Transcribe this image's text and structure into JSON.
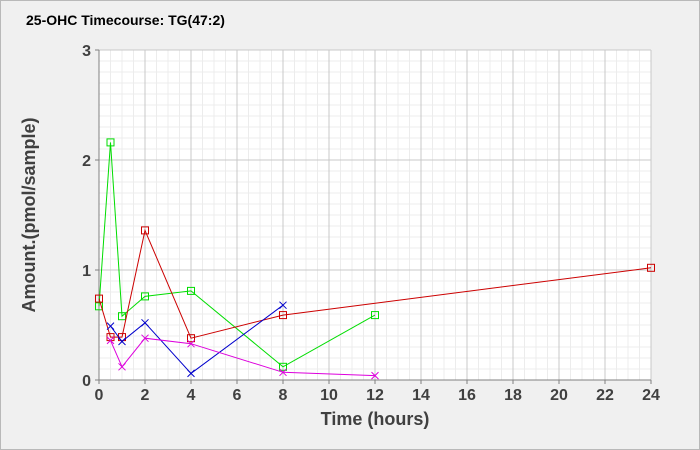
{
  "chart_data": {
    "type": "line",
    "title": "25-OHC Timecourse: TG(47:2)",
    "xlabel": "Time (hours)",
    "ylabel": "Amount.(pmol/sample)",
    "xlim": [
      0,
      24
    ],
    "ylim": [
      0,
      3
    ],
    "x_ticks": [
      "0",
      "2",
      "4",
      "6",
      "8",
      "10",
      "12",
      "14",
      "16",
      "18",
      "20",
      "22",
      "24"
    ],
    "y_ticks": [
      "0",
      "1",
      "2",
      "3"
    ],
    "grid": true,
    "legend": "none",
    "series": [
      {
        "color": "#00dd00",
        "marker": "square",
        "points": [
          [
            0,
            0.67
          ],
          [
            0.5,
            2.16
          ],
          [
            1,
            0.58
          ],
          [
            2,
            0.76
          ],
          [
            4,
            0.81
          ],
          [
            8,
            0.12
          ],
          [
            12,
            0.59
          ]
        ]
      },
      {
        "color": "#cc0000",
        "marker": "square",
        "points": [
          [
            0,
            0.74
          ],
          [
            0.5,
            0.39
          ],
          [
            1,
            0.39
          ],
          [
            2,
            1.36
          ],
          [
            4,
            0.38
          ],
          [
            8,
            0.59
          ],
          [
            24,
            1.02
          ]
        ]
      },
      {
        "color": "#0000cc",
        "marker": "x",
        "points": [
          [
            0.5,
            0.49
          ],
          [
            1,
            0.35
          ],
          [
            2,
            0.52
          ],
          [
            4,
            0.06
          ],
          [
            8,
            0.68
          ]
        ]
      },
      {
        "color": "#dd00dd",
        "marker": "x",
        "points": [
          [
            0.5,
            0.36
          ],
          [
            1,
            0.12
          ],
          [
            2,
            0.38
          ],
          [
            4,
            0.33
          ],
          [
            8,
            0.07
          ],
          [
            12,
            0.04
          ]
        ]
      }
    ]
  }
}
